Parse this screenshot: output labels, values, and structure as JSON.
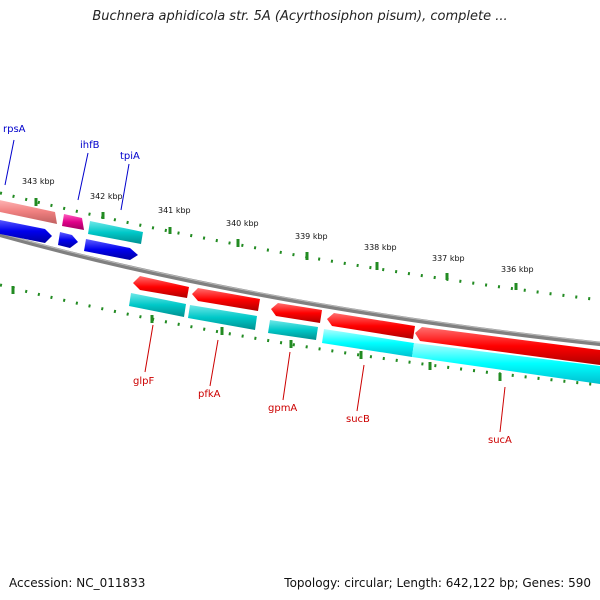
{
  "title": "Buchnera aphidicola str. 5A (Acyrthosiphon pisum), complete ...",
  "footer": {
    "accession": "Accession: NC_011833",
    "topology": "Topology: circular; Length: 642,122 bp; Genes: 590"
  },
  "colors": {
    "backbone": "#7f7f7f",
    "tick": "#228b22",
    "forward_gene": "#ff0000",
    "forward_gene_light": "#ffa0a0",
    "reverse_gene": "#00d0d0",
    "reverse_gene_light": "#00ffff",
    "strand_blue": "#0000ee",
    "magenta": "#e0008a",
    "label_top": "#0000cc",
    "label_bottom": "#cc0000"
  },
  "tick_labels": [
    "343 kbp",
    "342 kbp",
    "341 kbp",
    "340 kbp",
    "339 kbp",
    "338 kbp",
    "337 kbp",
    "336 kbp"
  ],
  "genes_top": [
    {
      "name": "rpsA"
    },
    {
      "name": "ihfB"
    },
    {
      "name": "tpiA"
    }
  ],
  "genes_bottom": [
    {
      "name": "glpF"
    },
    {
      "name": "pfkA"
    },
    {
      "name": "gpmA"
    },
    {
      "name": "sucB"
    },
    {
      "name": "sucA"
    }
  ]
}
